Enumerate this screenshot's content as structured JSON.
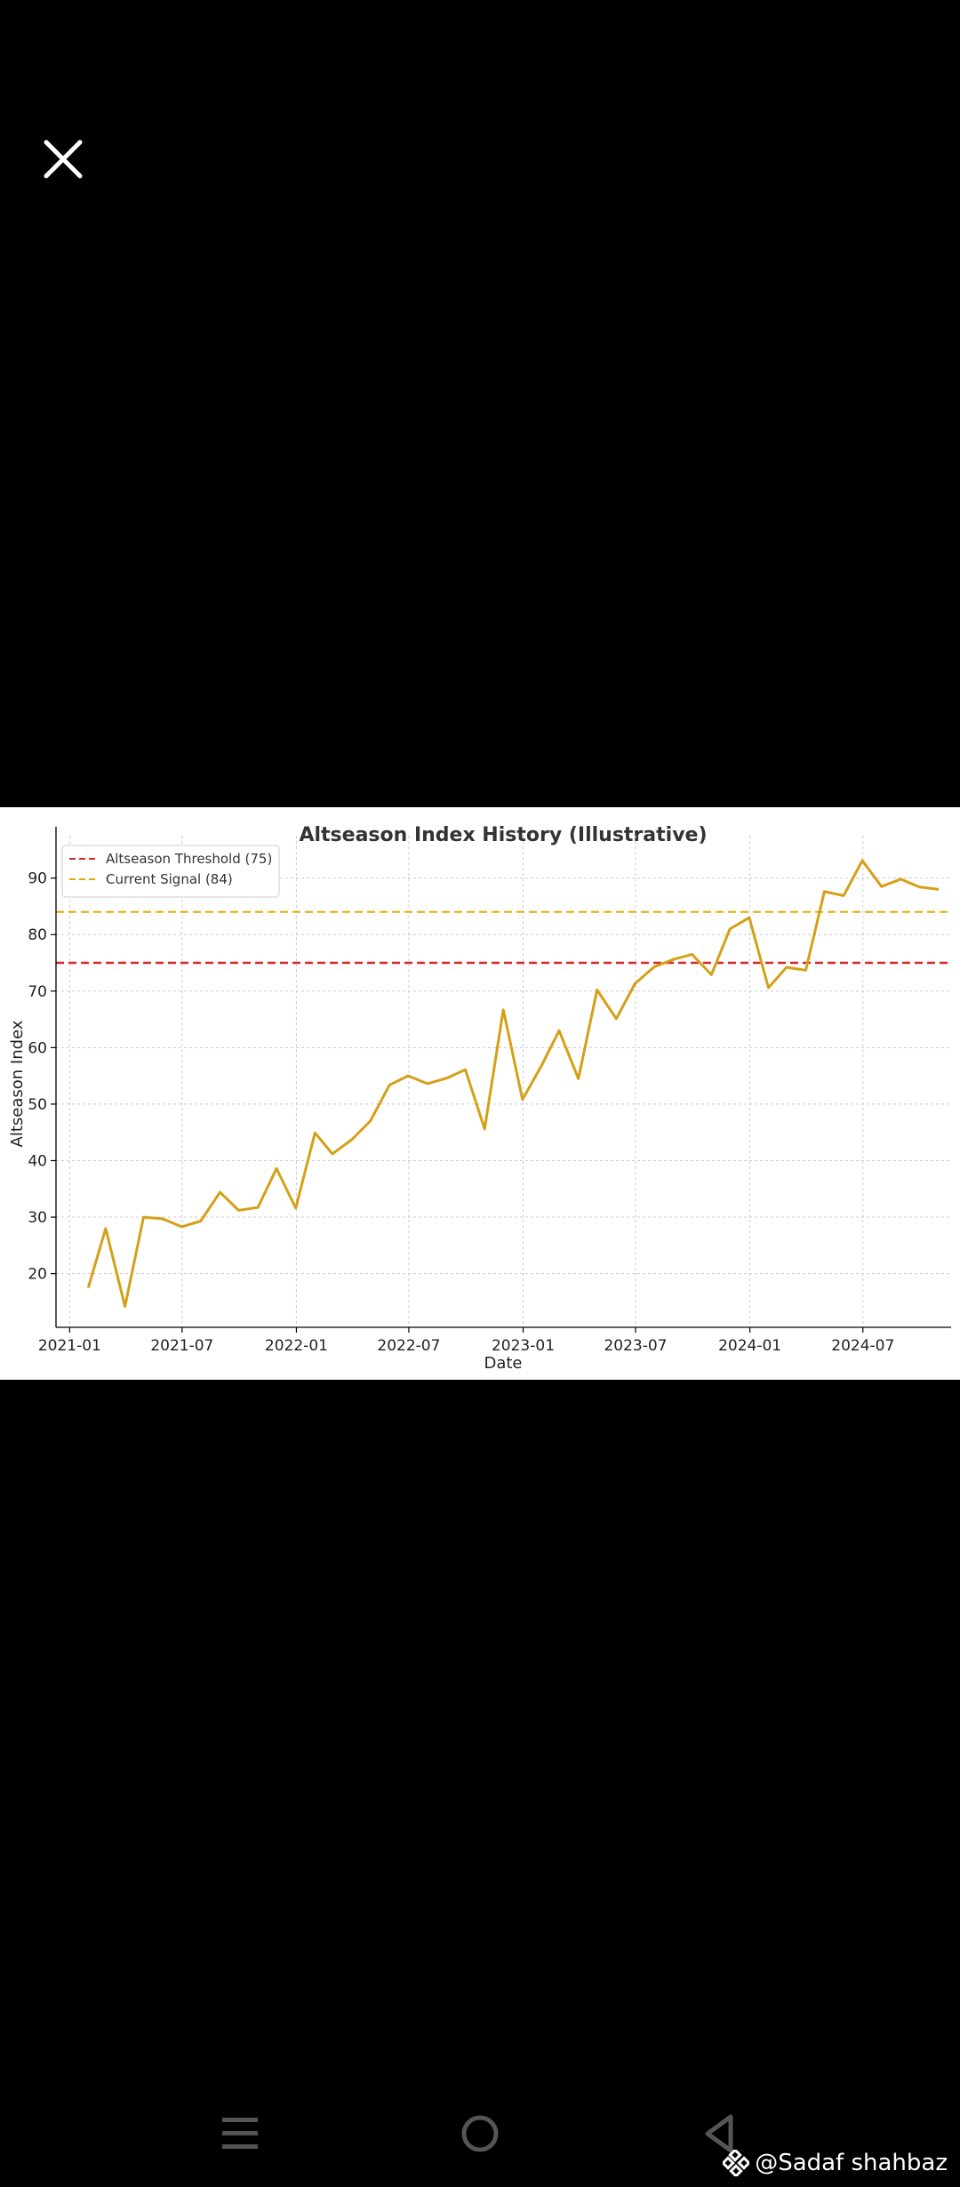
{
  "viewer": {
    "close_icon": "close-icon"
  },
  "chart_data": {
    "type": "line",
    "title": "Altseason Index History (Illustrative)",
    "xlabel": "Date",
    "ylabel": "Altseason Index",
    "x_ticks": [
      "2021-01",
      "2021-07",
      "2022-01",
      "2022-07",
      "2023-01",
      "2023-07",
      "2024-01",
      "2024-07"
    ],
    "y_ticks": [
      20,
      30,
      40,
      50,
      60,
      70,
      80,
      90
    ],
    "xlim": [
      "2020-12-10",
      "2024-11-20"
    ],
    "ylim": [
      10.5,
      97.5
    ],
    "grid": true,
    "legend_position": "upper-left",
    "series": [
      {
        "color": "#d4a017",
        "x": [
          "2021-01-31",
          "2021-02-28",
          "2021-03-31",
          "2021-04-30",
          "2021-05-31",
          "2021-06-30",
          "2021-07-31",
          "2021-08-31",
          "2021-09-30",
          "2021-10-31",
          "2021-11-30",
          "2021-12-31",
          "2022-01-31",
          "2022-02-28",
          "2022-03-31",
          "2022-04-30",
          "2022-05-31",
          "2022-06-30",
          "2022-07-31",
          "2022-08-31",
          "2022-09-30",
          "2022-10-31",
          "2022-11-30",
          "2022-12-31",
          "2023-01-31",
          "2023-02-28",
          "2023-03-31",
          "2023-04-30",
          "2023-05-31",
          "2023-06-30",
          "2023-07-31",
          "2023-08-31",
          "2023-09-30",
          "2023-10-31",
          "2023-11-30",
          "2023-12-31",
          "2024-01-31",
          "2024-02-29",
          "2024-03-31",
          "2024-04-30",
          "2024-05-31",
          "2024-06-30",
          "2024-07-31",
          "2024-08-31",
          "2024-09-30",
          "2024-10-31"
        ],
        "y": [
          17.5,
          28.0,
          14.2,
          30.0,
          29.7,
          28.3,
          29.3,
          34.4,
          31.2,
          31.7,
          38.6,
          31.6,
          44.9,
          41.2,
          43.7,
          47.0,
          53.4,
          55.0,
          53.6,
          54.6,
          56.1,
          45.6,
          66.7,
          50.8,
          56.9,
          63.0,
          54.5,
          70.2,
          65.1,
          71.3,
          74.3,
          75.6,
          76.5,
          72.9,
          81.0,
          83.0,
          70.6,
          74.2,
          73.7,
          87.6,
          86.9,
          93.1,
          88.5,
          89.8,
          88.4,
          88.0
        ]
      }
    ],
    "reference_lines": [
      {
        "name": "Altseason Threshold (75)",
        "y": 75,
        "color": "#d62728",
        "style": "dashed"
      },
      {
        "name": "Current Signal (84)",
        "y": 84,
        "color": "#f0a500",
        "style": "dashed"
      }
    ]
  },
  "nav": {
    "menu_icon": "menu-icon",
    "home_icon": "home-icon",
    "back_icon": "back-icon"
  },
  "watermark": {
    "text": "@Sadaf shahbaz",
    "logo": "binance-logo"
  }
}
